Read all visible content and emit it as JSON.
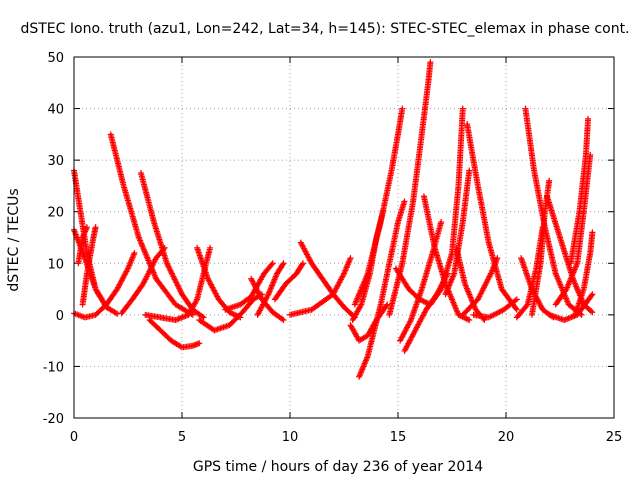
{
  "chart_data": {
    "type": "scatter",
    "title": "dSTEC Iono. truth (azu1, Lon=242, Lat=34, h=145): STEC-STEC_elemax in phase cont.",
    "xlabel": "GPS time / hours of day 236 of year 2014",
    "ylabel": "dSTEC  / TECUs",
    "xlim": [
      0,
      25
    ],
    "ylim": [
      -20,
      50
    ],
    "xticks": [
      "0",
      "5",
      "10",
      "15",
      "20",
      "25"
    ],
    "yticks": [
      "-20",
      "-10",
      "0",
      "10",
      "20",
      "30",
      "40",
      "50"
    ],
    "grid": true,
    "legend": "none",
    "marker": "plus",
    "color": "#ff0000",
    "tracks": [
      [
        [
          0.0,
          16.5
        ],
        [
          0.5,
          11
        ],
        [
          1.0,
          5
        ],
        [
          1.5,
          1.5
        ],
        [
          2.0,
          0.2
        ]
      ],
      [
        [
          0.0,
          0.3
        ],
        [
          0.5,
          -0.5
        ],
        [
          1.0,
          0
        ],
        [
          1.5,
          2
        ],
        [
          2.0,
          5
        ],
        [
          2.5,
          9
        ],
        [
          2.8,
          12
        ]
      ],
      [
        [
          0.0,
          28
        ],
        [
          0.3,
          20
        ],
        [
          0.6,
          12
        ],
        [
          1.0,
          5
        ],
        [
          1.5,
          1.5
        ]
      ],
      [
        [
          0.4,
          2
        ],
        [
          0.6,
          8
        ],
        [
          0.9,
          15
        ],
        [
          1.0,
          17
        ]
      ],
      [
        [
          0.2,
          10
        ],
        [
          0.4,
          15
        ],
        [
          0.6,
          17
        ]
      ],
      [
        [
          1.7,
          35
        ],
        [
          2.3,
          25
        ],
        [
          3.0,
          15
        ],
        [
          3.8,
          7
        ],
        [
          4.7,
          2
        ],
        [
          5.5,
          0
        ]
      ],
      [
        [
          2.2,
          0.3
        ],
        [
          2.7,
          3
        ],
        [
          3.2,
          6
        ],
        [
          3.8,
          11
        ],
        [
          4.2,
          13
        ]
      ],
      [
        [
          3.1,
          27.5
        ],
        [
          3.7,
          18
        ],
        [
          4.3,
          10
        ],
        [
          5.0,
          4
        ],
        [
          5.5,
          1
        ],
        [
          6.0,
          -0.5
        ]
      ],
      [
        [
          3.5,
          -1
        ],
        [
          4.0,
          -3
        ],
        [
          4.5,
          -5
        ],
        [
          5.0,
          -6.3
        ],
        [
          5.5,
          -6
        ],
        [
          5.8,
          -5.5
        ]
      ],
      [
        [
          3.3,
          0
        ],
        [
          4.0,
          -0.5
        ],
        [
          4.7,
          -1
        ],
        [
          5.3,
          0
        ],
        [
          5.7,
          3
        ],
        [
          6.0,
          8
        ],
        [
          6.3,
          13
        ]
      ],
      [
        [
          5.7,
          13
        ],
        [
          6.2,
          7
        ],
        [
          6.7,
          3
        ],
        [
          7.2,
          0.5
        ],
        [
          7.7,
          -0.5
        ]
      ],
      [
        [
          5.8,
          -1
        ],
        [
          6.5,
          -3
        ],
        [
          7.2,
          -2
        ],
        [
          7.8,
          0.5
        ],
        [
          8.3,
          3
        ],
        [
          8.7,
          4
        ]
      ],
      [
        [
          8.2,
          7
        ],
        [
          8.7,
          3
        ],
        [
          9.2,
          0.5
        ],
        [
          9.7,
          -1
        ]
      ],
      [
        [
          7.0,
          1
        ],
        [
          7.7,
          2
        ],
        [
          8.2,
          3.5
        ],
        [
          8.8,
          8
        ],
        [
          9.2,
          10
        ]
      ],
      [
        [
          8.5,
          0
        ],
        [
          9.0,
          4
        ],
        [
          9.4,
          8
        ],
        [
          9.7,
          10
        ]
      ],
      [
        [
          9.3,
          3
        ],
        [
          9.8,
          6
        ],
        [
          10.3,
          8
        ],
        [
          10.6,
          10
        ]
      ],
      [
        [
          10.5,
          14
        ],
        [
          11.0,
          10
        ],
        [
          11.5,
          7
        ],
        [
          12.0,
          4
        ],
        [
          12.5,
          1.5
        ],
        [
          13.0,
          -0.5
        ]
      ],
      [
        [
          10.0,
          0
        ],
        [
          11.0,
          1
        ],
        [
          12.0,
          4
        ],
        [
          12.5,
          8
        ],
        [
          12.8,
          11
        ]
      ],
      [
        [
          12.8,
          -2
        ],
        [
          13.2,
          -5
        ],
        [
          13.6,
          -4
        ],
        [
          14.0,
          -1
        ],
        [
          14.5,
          2
        ]
      ],
      [
        [
          12.9,
          -1
        ],
        [
          13.3,
          2
        ],
        [
          13.7,
          8
        ],
        [
          14.0,
          15
        ],
        [
          14.3,
          20
        ]
      ],
      [
        [
          13.2,
          -12
        ],
        [
          13.6,
          -8
        ],
        [
          14.2,
          2
        ],
        [
          14.7,
          12
        ],
        [
          15.0,
          18
        ],
        [
          15.3,
          22
        ]
      ],
      [
        [
          13.0,
          2
        ],
        [
          13.6,
          8
        ],
        [
          14.2,
          18
        ],
        [
          14.7,
          28
        ],
        [
          15.0,
          35
        ],
        [
          15.2,
          40
        ]
      ],
      [
        [
          14.6,
          0
        ],
        [
          15.2,
          10
        ],
        [
          15.7,
          22
        ],
        [
          16.1,
          35
        ],
        [
          16.4,
          45
        ],
        [
          16.5,
          49
        ]
      ],
      [
        [
          15.1,
          -5
        ],
        [
          15.6,
          -1
        ],
        [
          16.1,
          5
        ],
        [
          16.6,
          12
        ],
        [
          17.0,
          18
        ]
      ],
      [
        [
          15.3,
          -7
        ],
        [
          15.8,
          -3
        ],
        [
          16.3,
          1
        ],
        [
          16.8,
          4
        ],
        [
          17.3,
          8
        ]
      ],
      [
        [
          14.9,
          9
        ],
        [
          15.5,
          5
        ],
        [
          16.0,
          3
        ],
        [
          16.5,
          2
        ]
      ],
      [
        [
          16.2,
          23
        ],
        [
          16.7,
          13
        ],
        [
          17.2,
          6
        ],
        [
          17.8,
          0
        ],
        [
          18.3,
          -1
        ]
      ],
      [
        [
          16.5,
          2
        ],
        [
          17.0,
          5
        ],
        [
          17.5,
          12
        ],
        [
          17.8,
          25
        ],
        [
          18.0,
          40
        ]
      ],
      [
        [
          17.2,
          4
        ],
        [
          17.6,
          8
        ],
        [
          18.0,
          18
        ],
        [
          18.3,
          28
        ]
      ],
      [
        [
          17.7,
          13
        ],
        [
          18.1,
          6
        ],
        [
          18.6,
          1
        ],
        [
          19.0,
          -1
        ]
      ],
      [
        [
          18.2,
          37
        ],
        [
          18.7,
          25
        ],
        [
          19.2,
          14
        ],
        [
          19.8,
          5
        ],
        [
          20.5,
          1
        ]
      ],
      [
        [
          18.0,
          0
        ],
        [
          18.7,
          3
        ],
        [
          19.3,
          8
        ],
        [
          19.6,
          11
        ]
      ],
      [
        [
          18.5,
          0
        ],
        [
          19.2,
          -0.5
        ],
        [
          19.9,
          1
        ],
        [
          20.5,
          3
        ]
      ],
      [
        [
          20.7,
          11
        ],
        [
          21.2,
          5
        ],
        [
          21.7,
          1
        ],
        [
          22.2,
          -0.5
        ]
      ],
      [
        [
          20.5,
          -0.5
        ],
        [
          21.0,
          2
        ],
        [
          21.4,
          9
        ],
        [
          21.7,
          17
        ]
      ],
      [
        [
          20.9,
          40
        ],
        [
          21.3,
          28
        ],
        [
          21.8,
          17
        ],
        [
          22.3,
          8
        ],
        [
          22.9,
          2
        ],
        [
          23.5,
          0
        ]
      ],
      [
        [
          21.2,
          0
        ],
        [
          21.6,
          10
        ],
        [
          21.8,
          20
        ],
        [
          22.0,
          26
        ]
      ],
      [
        [
          21.9,
          23
        ],
        [
          22.5,
          15
        ],
        [
          23.1,
          7
        ],
        [
          23.6,
          2
        ],
        [
          24.0,
          0.5
        ]
      ],
      [
        [
          22.0,
          0
        ],
        [
          22.7,
          -1
        ],
        [
          23.3,
          0
        ],
        [
          24.0,
          4
        ]
      ],
      [
        [
          22.3,
          2
        ],
        [
          22.8,
          5
        ],
        [
          23.3,
          10
        ],
        [
          23.6,
          20
        ],
        [
          23.9,
          31
        ]
      ],
      [
        [
          23.2,
          0
        ],
        [
          23.6,
          5
        ],
        [
          23.9,
          12
        ],
        [
          24.0,
          16
        ]
      ],
      [
        [
          23.0,
          10
        ],
        [
          23.4,
          20
        ],
        [
          23.7,
          31
        ],
        [
          23.8,
          38
        ]
      ]
    ]
  }
}
